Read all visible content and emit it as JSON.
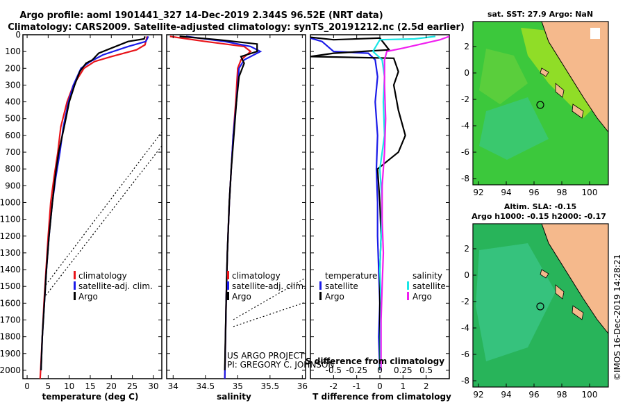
{
  "header": {
    "line1": "Argo profile: aoml 1901441_327 14-Dec-2019 2.344S 96.52E (NRT data)",
    "line2": "Climatology: CARS2009. Satellite-adjusted climatology: synTS_20191212.nc (2.5d earlier)"
  },
  "credits": {
    "project": "US ARGO PROJECT",
    "pi": "PI: GREGORY C. JOHNSON",
    "imos": "©IMOS 16-Dec-2019 14:28:21"
  },
  "colors": {
    "climatology": "#e8141a",
    "satellite": "#1a1ae8",
    "argo": "#000000",
    "satellite_salinity": "#19e6e6",
    "argo_salinity": "#f01ef0",
    "ocean_sst": "#3cc83c",
    "land": "#f5b98c"
  },
  "chart_data": [
    {
      "type": "line",
      "panel": "temperature",
      "xlabel": "temperature (deg C)",
      "xticks": [
        "0",
        "5",
        "10",
        "15",
        "20",
        "25",
        "30"
      ],
      "xlim": [
        -1,
        32
      ],
      "ylim": [
        0,
        2050
      ],
      "yticks": [
        "0",
        "100",
        "200",
        "300",
        "400",
        "500",
        "600",
        "700",
        "800",
        "900",
        "1000",
        "1100",
        "1200",
        "1300",
        "1400",
        "1500",
        "1600",
        "1700",
        "1800",
        "1900",
        "2000"
      ],
      "legend": [
        "climatology",
        "satellite-adj. clim.",
        "Argo"
      ],
      "series": [
        {
          "name": "climatology",
          "color": "#e8141a",
          "points": [
            [
              28.5,
              10
            ],
            [
              28,
              60
            ],
            [
              26,
              90
            ],
            [
              20,
              130
            ],
            [
              16,
              160
            ],
            [
              13.5,
              200
            ],
            [
              11,
              300
            ],
            [
              9.5,
              400
            ],
            [
              8,
              550
            ],
            [
              7.3,
              700
            ],
            [
              6.4,
              850
            ],
            [
              5.6,
              1000
            ],
            [
              5,
              1200
            ],
            [
              4.5,
              1400
            ],
            [
              4,
              1600
            ],
            [
              3.6,
              1800
            ],
            [
              3.2,
              2000
            ],
            [
              3.1,
              2050
            ]
          ]
        },
        {
          "name": "satellite-adj. clim.",
          "color": "#1a1ae8",
          "points": [
            [
              28.8,
              10
            ],
            [
              28.2,
              40
            ],
            [
              24,
              70
            ],
            [
              18,
              120
            ],
            [
              15,
              160
            ],
            [
              12.8,
              200
            ],
            [
              11,
              300
            ],
            [
              9.8,
              400
            ],
            [
              8.6,
              550
            ],
            [
              7.8,
              700
            ],
            [
              6.8,
              850
            ],
            [
              6,
              1000
            ],
            [
              5.2,
              1200
            ],
            [
              4.6,
              1400
            ],
            [
              4.1,
              1600
            ],
            [
              3.6,
              1800
            ],
            [
              3.3,
              2000
            ]
          ]
        },
        {
          "name": "Argo",
          "color": "#000000",
          "points": [
            [
              28,
              10
            ],
            [
              27.8,
              25
            ],
            [
              24,
              40
            ],
            [
              20,
              80
            ],
            [
              17,
              110
            ],
            [
              15.5,
              150
            ],
            [
              14,
              170
            ],
            [
              12.5,
              220
            ],
            [
              11.3,
              300
            ],
            [
              10,
              400
            ],
            [
              8.8,
              550
            ],
            [
              7.5,
              700
            ],
            [
              6.8,
              820
            ],
            [
              6,
              1000
            ],
            [
              5.2,
              1200
            ],
            [
              4.6,
              1400
            ],
            [
              4.1,
              1600
            ],
            [
              3.6,
              1800
            ],
            [
              3.3,
              2000
            ]
          ]
        }
      ]
    },
    {
      "type": "line",
      "panel": "salinity",
      "xlabel": "salinity",
      "xticks": [
        "34",
        "34.5",
        "35",
        "35.5",
        "36"
      ],
      "xlim": [
        33.9,
        36.05
      ],
      "ylim": [
        0,
        2050
      ],
      "legend": [
        "climatology",
        "satellite-adj. clim.",
        "Argo"
      ],
      "series": [
        {
          "name": "climatology",
          "color": "#e8141a",
          "points": [
            [
              33.95,
              10
            ],
            [
              34.5,
              40
            ],
            [
              35.1,
              70
            ],
            [
              35.2,
              100
            ],
            [
              35.05,
              150
            ],
            [
              35,
              200
            ],
            [
              34.97,
              400
            ],
            [
              34.93,
              600
            ],
            [
              34.9,
              800
            ],
            [
              34.87,
              1000
            ],
            [
              34.84,
              1300
            ],
            [
              34.82,
              1600
            ],
            [
              34.8,
              2050
            ]
          ]
        },
        {
          "name": "satellite-adj. clim.",
          "color": "#1a1ae8",
          "points": [
            [
              34.2,
              10
            ],
            [
              34.8,
              40
            ],
            [
              35.2,
              70
            ],
            [
              35.35,
              100
            ],
            [
              35.1,
              150
            ],
            [
              35.02,
              200
            ],
            [
              34.98,
              400
            ],
            [
              34.93,
              600
            ],
            [
              34.9,
              800
            ],
            [
              34.87,
              1000
            ],
            [
              34.84,
              1300
            ],
            [
              34.82,
              1600
            ],
            [
              34.8,
              2050
            ]
          ]
        },
        {
          "name": "Argo",
          "color": "#000000",
          "points": [
            [
              34.1,
              10
            ],
            [
              34.7,
              30
            ],
            [
              35.3,
              55
            ],
            [
              35.3,
              100
            ],
            [
              35.05,
              130
            ],
            [
              35.1,
              170
            ],
            [
              35.02,
              250
            ],
            [
              34.98,
              400
            ],
            [
              34.95,
              550
            ],
            [
              34.92,
              700
            ],
            [
              34.9,
              800
            ],
            [
              34.87,
              1000
            ],
            [
              34.84,
              1300
            ],
            [
              34.82,
              1600
            ],
            [
              34.8,
              2000
            ]
          ]
        }
      ]
    },
    {
      "type": "line",
      "panel": "difference",
      "xlabel": "T difference from climatology",
      "xlabel_top": "S difference from climatology",
      "xticks": [
        "-2",
        "-1",
        "0",
        "1",
        "2"
      ],
      "xticks_s": [
        "-0.5",
        "-0.25",
        "0",
        "0.25",
        "0.5"
      ],
      "xlim": [
        -3,
        3
      ],
      "ylim": [
        0,
        2050
      ],
      "legend_left_title": "temperature",
      "legend_right_title": "salinity",
      "legend": [
        "satellite",
        "Argo",
        "satellite",
        "Argo"
      ],
      "series": [
        {
          "name": "T satellite",
          "color": "#1a1ae8",
          "points": [
            [
              -3,
              20
            ],
            [
              -2.5,
              40
            ],
            [
              -2,
              100
            ],
            [
              -0.5,
              110
            ],
            [
              -0.2,
              150
            ],
            [
              -0.1,
              250
            ],
            [
              -0.2,
              400
            ],
            [
              -0.1,
              600
            ],
            [
              -0.15,
              800
            ],
            [
              -0.1,
              1000
            ],
            [
              -0.1,
              1200
            ],
            [
              -0.05,
              1400
            ],
            [
              0,
              1600
            ],
            [
              -0.05,
              1800
            ],
            [
              0,
              2000
            ]
          ]
        },
        {
          "name": "T Argo",
          "color": "#000000",
          "points": [
            [
              -3,
              15
            ],
            [
              -2,
              30
            ],
            [
              0,
              20
            ],
            [
              0.4,
              90
            ],
            [
              -2,
              110
            ],
            [
              -3,
              130
            ],
            [
              0.6,
              140
            ],
            [
              0.8,
              220
            ],
            [
              0.6,
              300
            ],
            [
              0.8,
              450
            ],
            [
              1.1,
              600
            ],
            [
              0.8,
              700
            ],
            [
              -0.1,
              800
            ],
            [
              0,
              1000
            ],
            [
              0.05,
              1200
            ],
            [
              0,
              1400
            ],
            [
              0,
              1600
            ],
            [
              0,
              1800
            ],
            [
              0,
              2000
            ]
          ]
        },
        {
          "name": "S satellite",
          "color": "#19e6e6",
          "points": [
            [
              2.4,
              10
            ],
            [
              1.5,
              25
            ],
            [
              0,
              30
            ],
            [
              -0.3,
              100
            ],
            [
              0.1,
              150
            ],
            [
              0.2,
              250
            ],
            [
              0.15,
              400
            ],
            [
              0.2,
              600
            ],
            [
              0,
              800
            ],
            [
              0.1,
              1000
            ],
            [
              0.05,
              1200
            ],
            [
              0,
              1400
            ],
            [
              0.05,
              1600
            ],
            [
              0.02,
              1800
            ],
            [
              0.02,
              2000
            ]
          ]
        },
        {
          "name": "S Argo",
          "color": "#f01ef0",
          "points": [
            [
              3,
              10
            ],
            [
              2.6,
              30
            ],
            [
              1,
              80
            ],
            [
              0.3,
              100
            ],
            [
              0.2,
              150
            ],
            [
              0.2,
              300
            ],
            [
              0.25,
              500
            ],
            [
              0.2,
              700
            ],
            [
              0.1,
              900
            ],
            [
              0.1,
              1100
            ],
            [
              0.15,
              1300
            ],
            [
              0.1,
              1500
            ],
            [
              0.05,
              1700
            ],
            [
              0.05,
              1900
            ],
            [
              0.05,
              2000
            ]
          ]
        }
      ]
    }
  ],
  "maps": {
    "top": {
      "title": "sat. SST: 27.9 Argo: NaN",
      "xticks": [
        "92",
        "94",
        "96",
        "98",
        "100"
      ],
      "yticks": [
        "2",
        "0",
        "-2",
        "-4",
        "-6",
        "-8"
      ]
    },
    "bottom": {
      "title1": "Altim. SLA: -0.15",
      "title2": "Argo h1000: -0.15 h2000: -0.17",
      "xticks": [
        "92",
        "94",
        "96",
        "98",
        "100"
      ],
      "yticks": [
        "2",
        "0",
        "-2",
        "-4",
        "-6",
        "-8"
      ]
    }
  }
}
